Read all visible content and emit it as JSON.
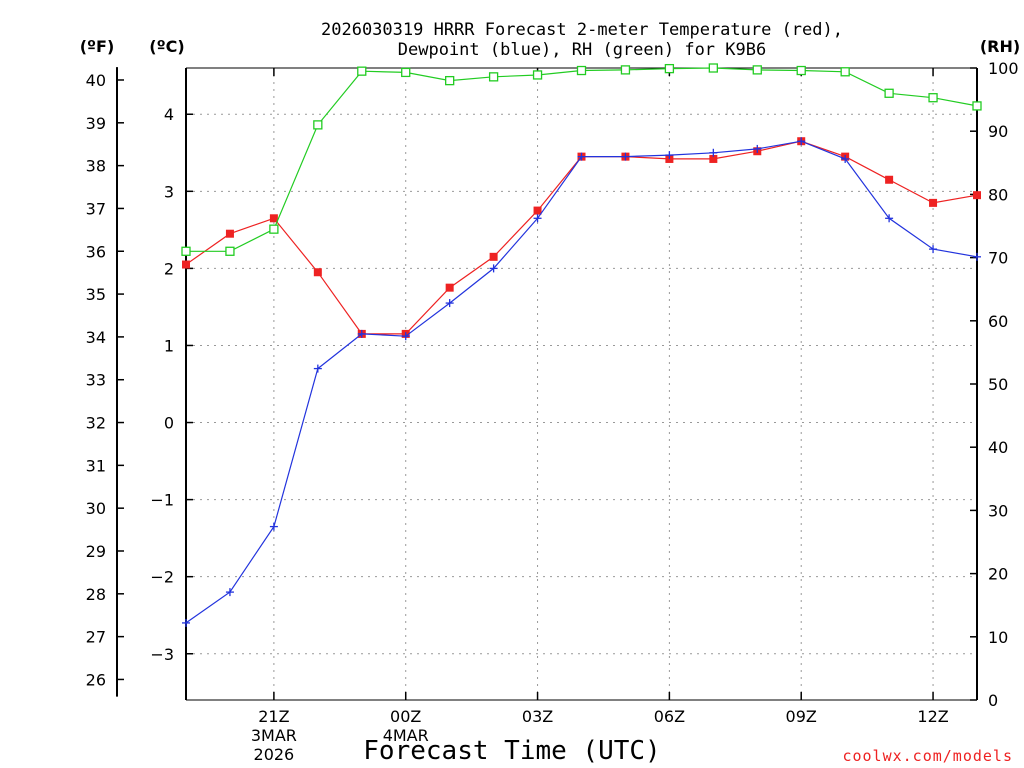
{
  "chart_data": {
    "type": "line",
    "title_line1": "2026030319 HRRR Forecast 2-meter Temperature (red),",
    "title_line2": "Dewpoint (blue), RH (green) for K9B6",
    "xlabel": "Forecast Time (UTC)",
    "credit": "coolwx.com/models",
    "unit_labels": {
      "fahrenheit": "(ºF)",
      "celsius": "(ºC)",
      "rh": "(RH)"
    },
    "x_hours": [
      0,
      1,
      2,
      3,
      4,
      5,
      6,
      7,
      8,
      9,
      10,
      11,
      12,
      13,
      14,
      15,
      16,
      17,
      18
    ],
    "x_ticks": [
      {
        "hour": 2,
        "lines": [
          "21Z",
          "3MAR",
          "2026"
        ]
      },
      {
        "hour": 5,
        "lines": [
          "00Z",
          "4MAR"
        ]
      },
      {
        "hour": 8,
        "lines": [
          "03Z"
        ]
      },
      {
        "hour": 11,
        "lines": [
          "06Z"
        ]
      },
      {
        "hour": 14,
        "lines": [
          "09Z"
        ]
      },
      {
        "hour": 17,
        "lines": [
          "12Z"
        ]
      }
    ],
    "celsius_axis": {
      "min": -3.6,
      "max": 4.6,
      "ticks": [
        "-3",
        "-2",
        "-1",
        "0",
        "1",
        "2",
        "3",
        "4"
      ]
    },
    "fahrenheit_axis": {
      "ticks": [
        "26",
        "27",
        "28",
        "29",
        "30",
        "31",
        "32",
        "33",
        "34",
        "35",
        "36",
        "37",
        "38",
        "39",
        "40"
      ]
    },
    "rh_axis": {
      "min": 0,
      "max": 100,
      "ticks": [
        "0",
        "10",
        "20",
        "30",
        "40",
        "50",
        "60",
        "70",
        "80",
        "90",
        "100"
      ]
    },
    "series": [
      {
        "name": "Temperature",
        "unit": "C",
        "color": "#ee2222",
        "marker": "filled-square",
        "values": [
          2.05,
          2.45,
          2.65,
          1.95,
          1.15,
          1.15,
          1.75,
          2.15,
          2.75,
          3.45,
          3.45,
          3.42,
          3.42,
          3.52,
          3.65,
          3.45,
          3.15,
          2.85,
          2.95
        ]
      },
      {
        "name": "Dewpoint",
        "unit": "C",
        "color": "#2233dd",
        "marker": "plus",
        "values": [
          -2.6,
          -2.2,
          -1.35,
          0.7,
          1.15,
          1.12,
          1.55,
          2.0,
          2.65,
          3.45,
          3.45,
          3.47,
          3.5,
          3.55,
          3.65,
          3.42,
          2.65,
          2.25,
          2.15
        ]
      },
      {
        "name": "RH",
        "unit": "%",
        "color": "#22cc22",
        "marker": "open-square",
        "values": [
          71,
          71,
          74.5,
          91,
          99.5,
          99.3,
          98,
          98.6,
          98.9,
          99.6,
          99.7,
          99.9,
          100,
          99.7,
          99.6,
          99.4,
          96,
          95.3,
          94
        ]
      }
    ]
  }
}
